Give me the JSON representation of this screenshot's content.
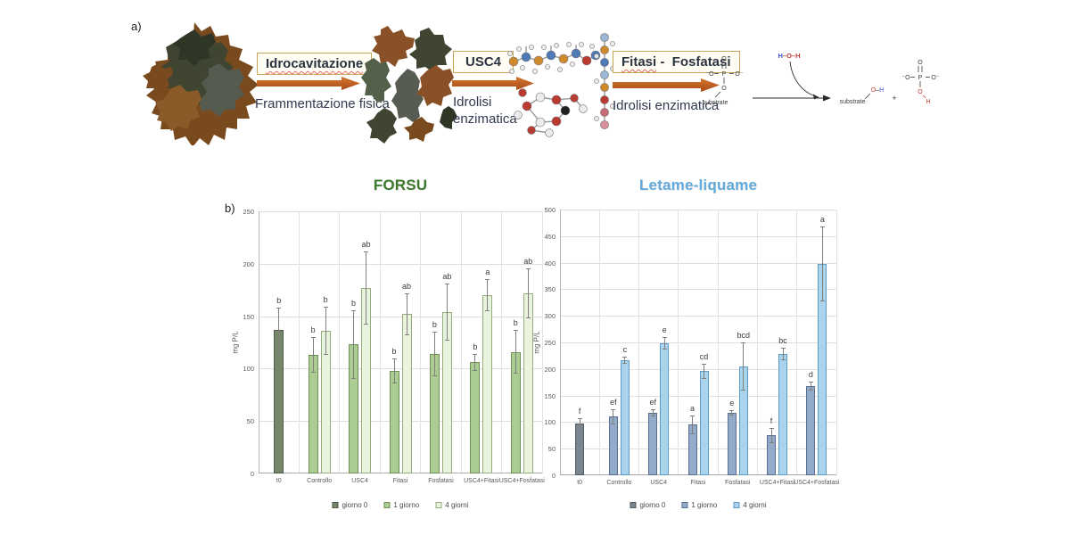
{
  "panel_labels": {
    "a": "a)",
    "b": "b)"
  },
  "process_diagram": {
    "arrow_color": "#c05a1e",
    "box_border_color": "#c9a55a",
    "steps": [
      {
        "box_label": "Idrocavitazione",
        "caption": "Frammentazione fisica"
      },
      {
        "box_label": "USC4",
        "caption": "Idrolisi enzimatica"
      },
      {
        "box_word_1": "Fitasi",
        "box_word_2": " -  Fosfatasi",
        "caption": "Idrolisi enzimatica"
      }
    ]
  },
  "reaction": {
    "substrate_left": "substrate",
    "substrate_right": "substrate",
    "water_h1": "H",
    "water_o": "–O–",
    "water_h2": "H",
    "plus": "+",
    "atom_o": "O",
    "atom_p": "P",
    "atom_h": "H",
    "o_minus_l": "⁻O",
    "o_minus_r": "O⁻",
    "product_o": "O",
    "product_h": "H",
    "colors": {
      "red": "#c03a35",
      "blue": "#3a50c8",
      "bond": "#3a3a3a"
    }
  },
  "chart_data": [
    {
      "type": "bar",
      "title": "FORSU",
      "title_color": "#3e7a2e",
      "ylabel": "mg P/L",
      "ylim": [
        0,
        250
      ],
      "ytick_step": 50,
      "grid": true,
      "legend_position": "bottom",
      "categories": [
        "t0",
        "Controllo",
        "USC4",
        "Fitasi",
        "Fosfatasi",
        "USC4+Fitasi",
        "USC4+Fosfatasi"
      ],
      "series": [
        {
          "name": "giorno 0",
          "fill": "#75866b",
          "border": "#4f5a45",
          "dotted": true,
          "values": [
            137,
            null,
            null,
            null,
            null,
            null,
            null
          ],
          "errors": [
            21,
            null,
            null,
            null,
            null,
            null,
            null
          ],
          "letters": [
            "b",
            null,
            null,
            null,
            null,
            null,
            null
          ]
        },
        {
          "name": "1 giorno",
          "fill": "#abcd92",
          "border": "#6f8f55",
          "dotted": true,
          "values": [
            null,
            113,
            123,
            98,
            114,
            106,
            116
          ],
          "errors": [
            null,
            17,
            33,
            12,
            21,
            8,
            21
          ],
          "letters": [
            null,
            "b",
            "b",
            "b",
            "b",
            "b",
            "b"
          ]
        },
        {
          "name": "4 giorni",
          "fill": "#e9f3de",
          "border": "#94ad7f",
          "dotted": false,
          "values": [
            null,
            136,
            177,
            152,
            154,
            170,
            172
          ],
          "errors": [
            null,
            23,
            35,
            20,
            27,
            15,
            24
          ],
          "letters": [
            null,
            "b",
            "ab",
            "ab",
            "ab",
            "a",
            "ab"
          ]
        }
      ]
    },
    {
      "type": "bar",
      "title": "Letame-liquame",
      "title_color": "#64aadc",
      "ylabel": "mg P/L",
      "ylim": [
        0,
        500
      ],
      "ytick_step": 50,
      "grid": true,
      "legend_position": "bottom",
      "categories": [
        "t0",
        "Controllo",
        "USC4",
        "Fitasi",
        "Fosfatasi",
        "USC4+Fitasi",
        "USC4+Fosfatasi"
      ],
      "series": [
        {
          "name": "giorno 0",
          "fill": "#7b8790",
          "border": "#515b62",
          "dotted": true,
          "values": [
            98,
            null,
            null,
            null,
            null,
            null,
            null
          ],
          "errors": [
            10,
            null,
            null,
            null,
            null,
            null,
            null
          ],
          "letters": [
            "f",
            null,
            null,
            null,
            null,
            null,
            null
          ]
        },
        {
          "name": "1 giorno",
          "fill": "#93aac9",
          "border": "#5a6e91",
          "dotted": true,
          "values": [
            null,
            110,
            117,
            95,
            118,
            75,
            168
          ],
          "errors": [
            null,
            14,
            7,
            18,
            5,
            14,
            8
          ],
          "letters": [
            null,
            "ef",
            "ef",
            "a",
            "e",
            "f",
            "d"
          ]
        },
        {
          "name": "4 giorni",
          "fill": "#a9d4ec",
          "border": "#5e9bc6",
          "dotted": true,
          "values": [
            null,
            216,
            248,
            196,
            205,
            228,
            398
          ],
          "errors": [
            null,
            7,
            12,
            14,
            45,
            12,
            70
          ],
          "letters": [
            null,
            "c",
            "e",
            "cd",
            "bcd",
            "bc",
            "a"
          ]
        }
      ]
    }
  ]
}
